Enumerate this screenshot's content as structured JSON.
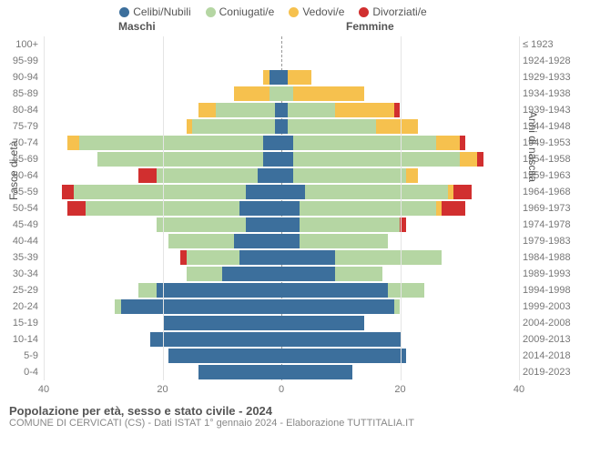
{
  "legend": [
    {
      "label": "Celibi/Nubili",
      "color": "#3c6f9c"
    },
    {
      "label": "Coniugati/e",
      "color": "#b5d6a3"
    },
    {
      "label": "Vedovi/e",
      "color": "#f6c14e"
    },
    {
      "label": "Divorziati/e",
      "color": "#d12f2f"
    }
  ],
  "headers": {
    "male": "Maschi",
    "female": "Femmine",
    "first_year": "≤ 1923"
  },
  "axis_labels": {
    "left": "Fasce di età",
    "right": "Anni di nascita"
  },
  "x": {
    "max": 40,
    "ticks": [
      40,
      20,
      0,
      20,
      40
    ]
  },
  "colors": {
    "grid": "#e5e5e5",
    "center": "#999999",
    "background": "#ffffff",
    "text": "#555555"
  },
  "footer": {
    "title": "Popolazione per età, sesso e stato civile - 2024",
    "subtitle": "COMUNE DI CERVICATI (CS) - Dati ISTAT 1° gennaio 2024 - Elaborazione TUTTITALIA.IT"
  },
  "rows": [
    {
      "age": "100+",
      "year": "≤ 1923",
      "m": [
        0,
        0,
        0,
        0
      ],
      "f": [
        0,
        0,
        0,
        0
      ]
    },
    {
      "age": "95-99",
      "year": "1924-1928",
      "m": [
        0,
        0,
        0,
        0
      ],
      "f": [
        0,
        0,
        0,
        0
      ]
    },
    {
      "age": "90-94",
      "year": "1929-1933",
      "m": [
        2,
        0,
        1,
        0
      ],
      "f": [
        1,
        0,
        4,
        0
      ]
    },
    {
      "age": "85-89",
      "year": "1934-1938",
      "m": [
        0,
        2,
        6,
        0
      ],
      "f": [
        0,
        2,
        12,
        0
      ]
    },
    {
      "age": "80-84",
      "year": "1939-1943",
      "m": [
        1,
        10,
        3,
        0
      ],
      "f": [
        1,
        8,
        10,
        1
      ]
    },
    {
      "age": "75-79",
      "year": "1944-1948",
      "m": [
        1,
        14,
        1,
        0
      ],
      "f": [
        1,
        15,
        7,
        0
      ]
    },
    {
      "age": "70-74",
      "year": "1949-1953",
      "m": [
        3,
        31,
        2,
        0
      ],
      "f": [
        2,
        24,
        4,
        1
      ]
    },
    {
      "age": "65-69",
      "year": "1954-1958",
      "m": [
        3,
        28,
        0,
        0
      ],
      "f": [
        2,
        28,
        3,
        1
      ]
    },
    {
      "age": "60-64",
      "year": "1959-1963",
      "m": [
        4,
        17,
        0,
        3
      ],
      "f": [
        2,
        19,
        2,
        0
      ]
    },
    {
      "age": "55-59",
      "year": "1964-1968",
      "m": [
        6,
        29,
        0,
        2
      ],
      "f": [
        4,
        24,
        1,
        3
      ]
    },
    {
      "age": "50-54",
      "year": "1969-1973",
      "m": [
        7,
        26,
        0,
        3
      ],
      "f": [
        3,
        23,
        1,
        4
      ]
    },
    {
      "age": "45-49",
      "year": "1974-1978",
      "m": [
        6,
        15,
        0,
        0
      ],
      "f": [
        3,
        17,
        0,
        1
      ]
    },
    {
      "age": "40-44",
      "year": "1979-1983",
      "m": [
        8,
        11,
        0,
        0
      ],
      "f": [
        3,
        15,
        0,
        0
      ]
    },
    {
      "age": "35-39",
      "year": "1984-1988",
      "m": [
        7,
        9,
        0,
        1
      ],
      "f": [
        9,
        18,
        0,
        0
      ]
    },
    {
      "age": "30-34",
      "year": "1989-1993",
      "m": [
        10,
        6,
        0,
        0
      ],
      "f": [
        9,
        8,
        0,
        0
      ]
    },
    {
      "age": "25-29",
      "year": "1994-1998",
      "m": [
        21,
        3,
        0,
        0
      ],
      "f": [
        18,
        6,
        0,
        0
      ]
    },
    {
      "age": "20-24",
      "year": "1999-2003",
      "m": [
        27,
        1,
        0,
        0
      ],
      "f": [
        19,
        1,
        0,
        0
      ]
    },
    {
      "age": "15-19",
      "year": "2004-2008",
      "m": [
        20,
        0,
        0,
        0
      ],
      "f": [
        14,
        0,
        0,
        0
      ]
    },
    {
      "age": "10-14",
      "year": "2009-2013",
      "m": [
        22,
        0,
        0,
        0
      ],
      "f": [
        20,
        0,
        0,
        0
      ]
    },
    {
      "age": "5-9",
      "year": "2014-2018",
      "m": [
        19,
        0,
        0,
        0
      ],
      "f": [
        21,
        0,
        0,
        0
      ]
    },
    {
      "age": "0-4",
      "year": "2019-2023",
      "m": [
        14,
        0,
        0,
        0
      ],
      "f": [
        12,
        0,
        0,
        0
      ]
    }
  ]
}
